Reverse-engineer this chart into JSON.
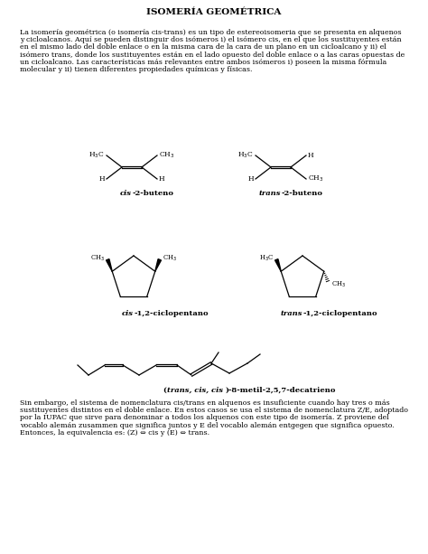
{
  "title": "ISOMERÍA GEOMÉTRICA",
  "bg_color": "#ffffff",
  "text_color": "#000000",
  "link_color": "#3333cc",
  "p1_line1": "La isomería geométrica (o isomería cis-trans) es un tipo de estereoisomeria que se presenta en alquenos",
  "p1_line2": "y cicloalcanos. Aquí se pueden distinguir dos isómeros i) el isómero cis, en el que los sustituyentes están",
  "p1_line3": "en el mismo lado del doble enlace o en la misma cara de la cara de un plano en un cicloalcano y ii) el",
  "p1_line4": "isómero trans, donde los sustituyentes están en el lado opuesto del doble enlace o a las caras opuestas de",
  "p1_line5": "un cicloalcano. Las características más relevantes entre ambos isómeros i) poseen la misma fórmula",
  "p1_line6": "molecular y ii) tienen diferentes propiedades químicas y físicas.",
  "p2_line1": "Sin embargo, el sistema de nomenclatura cis/trans en alquenos es insuficiente cuando hay tres o más",
  "p2_line2": "sustituyentes distintos en el doble enlace. En estos casos se usa el sistema de nomenclatura Z/E, adoptado",
  "p2_line3": "por la IUPAC que sirve para denominar a todos los alquenos con este tipo de isomería. Z proviene del",
  "p2_line4": "vocablo alemán zusammen que significa juntos y E del vocablo alemán entgegen que significa opuesto.",
  "p2_line5": "Entonces, la equivalencia es: (Z) ⇔ cis y (E) ⇔ trans.",
  "label_cis_buteno_italic": "cis",
  "label_cis_buteno_normal": "-2-buteno",
  "label_trans_buteno_italic": "trans",
  "label_trans_buteno_normal": "-2-buteno",
  "label_cis_ciclo_italic": "cis",
  "label_cis_ciclo_normal": "-1,2-ciclopentano",
  "label_trans_ciclo_italic": "trans",
  "label_trans_ciclo_normal": "-1,2-ciclopentano",
  "label_deca_italic": "trans, cis, cis",
  "label_deca_normal": ")-8-metil-2,5,7-decatrieno"
}
